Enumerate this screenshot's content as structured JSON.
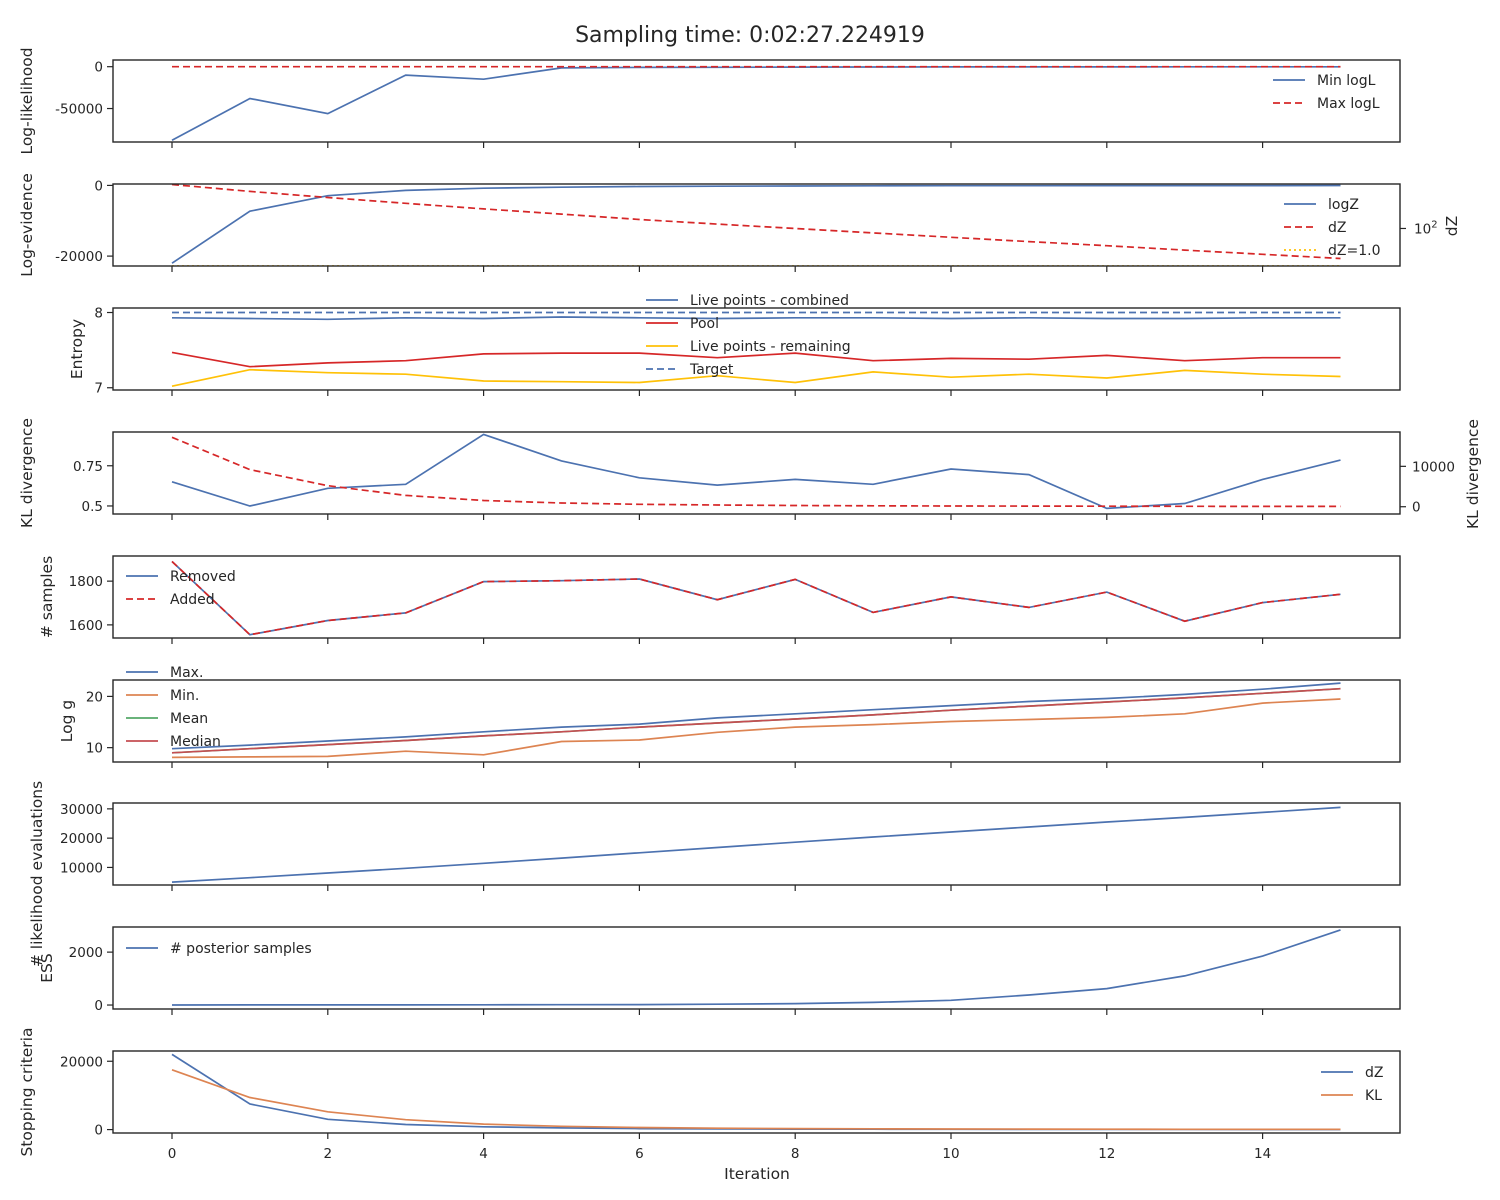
{
  "title": "Sampling time: 0:02:27.224919",
  "xlabel": "Iteration",
  "colors": {
    "blue": "#4c72b0",
    "red": "#d62728",
    "orange": "#dd8452",
    "green": "#55a868",
    "yellow": "#ffc107",
    "crimson": "#c44e52",
    "axis": "#262626"
  },
  "chart_data": [
    {
      "type": "line",
      "ylabel": "Log-likelihood",
      "ylim": [
        -90000,
        8000
      ],
      "yticks": [
        0,
        -50000
      ],
      "legend": "right",
      "x": [
        0,
        1,
        2,
        3,
        4,
        5,
        6,
        7,
        8,
        9,
        10,
        11,
        12,
        13,
        14,
        15
      ],
      "series": [
        {
          "name": "Min logL",
          "color": "#4c72b0",
          "style": "solid",
          "values": [
            -88000,
            -38000,
            -56000,
            -10000,
            -15000,
            -1500,
            -900,
            -700,
            -500,
            -400,
            -300,
            -250,
            -200,
            -180,
            -150,
            -120
          ]
        },
        {
          "name": "Max logL",
          "color": "#d62728",
          "style": "dashed",
          "values": [
            0,
            0,
            0,
            0,
            0,
            0,
            0,
            0,
            0,
            0,
            0,
            0,
            0,
            0,
            0,
            0
          ]
        }
      ]
    },
    {
      "type": "line",
      "ylabel": "Log-evidence",
      "ylim": [
        -22800,
        400
      ],
      "yticks": [
        0,
        -20000
      ],
      "legend": "right",
      "y2label": "dZ",
      "y2scale": "log",
      "y2ticks": [
        {
          "label": "10",
          "sup": "2",
          "value": 100
        }
      ],
      "y2lim_log10": [
        0,
        4.37
      ],
      "x": [
        0,
        1,
        2,
        3,
        4,
        5,
        6,
        7,
        8,
        9,
        10,
        11,
        12,
        13,
        14,
        15
      ],
      "series": [
        {
          "name": "logZ",
          "color": "#4c72b0",
          "style": "solid",
          "axis": "left",
          "values": [
            -22000,
            -7300,
            -2900,
            -1400,
            -800,
            -500,
            -320,
            -220,
            -160,
            -120,
            -90,
            -70,
            -55,
            -45,
            -40,
            -35
          ]
        },
        {
          "name": "dZ",
          "color": "#d62728",
          "style": "dashed",
          "axis": "right",
          "values": [
            22000,
            9500,
            4500,
            2200,
            1100,
            580,
            300,
            170,
            100,
            58,
            34,
            20,
            12,
            7,
            4.2,
            2.5
          ]
        },
        {
          "name": "dZ=1.0",
          "color": "#ffc107",
          "style": "dotted",
          "axis": "right",
          "values": [
            1,
            1,
            1,
            1,
            1,
            1,
            1,
            1,
            1,
            1,
            1,
            1,
            1,
            1,
            1,
            1
          ]
        }
      ]
    },
    {
      "type": "line",
      "ylabel": "Entropy",
      "ylim": [
        6.97,
        8.06
      ],
      "yticks": [
        8,
        7
      ],
      "legend": "top-center",
      "x": [
        0,
        1,
        2,
        3,
        4,
        5,
        6,
        7,
        8,
        9,
        10,
        11,
        12,
        13,
        14,
        15
      ],
      "series": [
        {
          "name": "Live points - combined",
          "color": "#4c72b0",
          "style": "solid",
          "values": [
            7.93,
            7.92,
            7.91,
            7.93,
            7.92,
            7.94,
            7.93,
            7.92,
            7.93,
            7.93,
            7.92,
            7.93,
            7.92,
            7.92,
            7.93,
            7.93
          ]
        },
        {
          "name": "Pool",
          "color": "#d62728",
          "style": "solid",
          "values": [
            7.47,
            7.28,
            7.33,
            7.36,
            7.45,
            7.46,
            7.46,
            7.4,
            7.46,
            7.36,
            7.39,
            7.38,
            7.43,
            7.36,
            7.4,
            7.4
          ]
        },
        {
          "name": "Live points - remaining",
          "color": "#ffc107",
          "style": "solid",
          "values": [
            7.02,
            7.24,
            7.2,
            7.18,
            7.09,
            7.08,
            7.07,
            7.16,
            7.07,
            7.21,
            7.14,
            7.18,
            7.13,
            7.23,
            7.18,
            7.15
          ]
        },
        {
          "name": "Target",
          "color": "#4c72b0",
          "style": "dashed",
          "values": [
            8,
            8,
            8,
            8,
            8,
            8,
            8,
            8,
            8,
            8,
            8,
            8,
            8,
            8,
            8,
            8
          ]
        }
      ]
    },
    {
      "type": "line",
      "ylabel": "KL divergence",
      "ylim": [
        0.45,
        0.96
      ],
      "yticks": [
        0.75,
        0.5
      ],
      "y2label": "KL divergence",
      "y2lim": [
        -1800,
        18500
      ],
      "y2ticks": [
        10000,
        0
      ],
      "x": [
        0,
        1,
        2,
        3,
        4,
        5,
        6,
        7,
        8,
        9,
        10,
        11,
        12,
        13,
        14,
        15
      ],
      "series": [
        {
          "name": "",
          "color": "#4c72b0",
          "style": "solid",
          "axis": "left",
          "values": [
            0.65,
            0.5,
            0.61,
            0.635,
            0.945,
            0.78,
            0.675,
            0.63,
            0.665,
            0.635,
            0.73,
            0.695,
            0.485,
            0.515,
            0.665,
            0.785
          ]
        },
        {
          "name": "",
          "color": "#d62728",
          "style": "dashed",
          "axis": "right",
          "values": [
            17200,
            9200,
            5200,
            2800,
            1550,
            920,
            600,
            420,
            310,
            230,
            180,
            150,
            120,
            100,
            90,
            80
          ]
        }
      ]
    },
    {
      "type": "line",
      "ylabel": "# samples",
      "ylim": [
        1540,
        1915
      ],
      "yticks": [
        1800,
        1600
      ],
      "legend": "top-left",
      "x": [
        0,
        1,
        2,
        3,
        4,
        5,
        6,
        7,
        8,
        9,
        10,
        11,
        12,
        13,
        14,
        15
      ],
      "series": [
        {
          "name": "Removed",
          "color": "#4c72b0",
          "style": "solid",
          "values": [
            1890,
            1555,
            1620,
            1655,
            1798,
            1802,
            1810,
            1715,
            1808,
            1657,
            1728,
            1680,
            1750,
            1617,
            1702,
            1740
          ]
        },
        {
          "name": "Added",
          "color": "#d62728",
          "style": "dashed",
          "values": [
            1890,
            1555,
            1620,
            1655,
            1798,
            1802,
            1810,
            1715,
            1808,
            1657,
            1728,
            1680,
            1750,
            1617,
            1702,
            1740
          ]
        }
      ]
    },
    {
      "type": "line",
      "ylabel": "Log g",
      "ylim": [
        7.2,
        23.2
      ],
      "yticks": [
        20,
        10
      ],
      "legend": "top-left-outside",
      "x": [
        0,
        1,
        2,
        3,
        4,
        5,
        6,
        7,
        8,
        9,
        10,
        11,
        12,
        13,
        14,
        15
      ],
      "series": [
        {
          "name": "Max.",
          "color": "#4c72b0",
          "style": "solid",
          "values": [
            9.8,
            10.5,
            11.3,
            12.1,
            13.1,
            14,
            14.6,
            15.8,
            16.6,
            17.4,
            18.2,
            19.0,
            19.6,
            20.4,
            21.4,
            22.6
          ]
        },
        {
          "name": "Min.",
          "color": "#dd8452",
          "style": "solid",
          "values": [
            8.1,
            8.2,
            8.3,
            9.3,
            8.6,
            11.2,
            11.5,
            13,
            14,
            14.5,
            15.1,
            15.5,
            15.9,
            16.6,
            18.7,
            19.5
          ]
        },
        {
          "name": "Mean",
          "color": "#55a868",
          "style": "solid",
          "values": [
            9,
            9.8,
            10.6,
            11.4,
            12.3,
            13.1,
            14,
            14.8,
            15.6,
            16.4,
            17.3,
            18.1,
            18.9,
            19.7,
            20.6,
            21.5
          ]
        },
        {
          "name": "Median",
          "color": "#c44e52",
          "style": "solid",
          "values": [
            9,
            9.8,
            10.6,
            11.4,
            12.3,
            13.1,
            14,
            14.8,
            15.6,
            16.4,
            17.3,
            18.1,
            18.9,
            19.7,
            20.6,
            21.5
          ]
        }
      ]
    },
    {
      "type": "line",
      "ylabel": "# likelihood evaluations",
      "ylim": [
        4000,
        32000
      ],
      "yticks": [
        30000,
        20000,
        10000
      ],
      "x": [
        0,
        1,
        2,
        3,
        4,
        5,
        6,
        7,
        8,
        9,
        10,
        11,
        12,
        13,
        14,
        15
      ],
      "series": [
        {
          "name": "",
          "color": "#4c72b0",
          "style": "solid",
          "values": [
            5000,
            6500,
            8100,
            9700,
            11400,
            13200,
            15000,
            16800,
            18600,
            20400,
            22100,
            23800,
            25500,
            27100,
            28800,
            30500
          ]
        }
      ]
    },
    {
      "type": "line",
      "ylabel": "ESS",
      "ylim": [
        -150,
        2950
      ],
      "yticks": [
        2000,
        0
      ],
      "legend": "top-left",
      "x": [
        0,
        1,
        2,
        3,
        4,
        5,
        6,
        7,
        8,
        9,
        10,
        11,
        12,
        13,
        14,
        15
      ],
      "series": [
        {
          "name": "# posterior samples",
          "color": "#4c72b0",
          "style": "solid",
          "values": [
            3,
            4,
            5,
            6,
            8,
            12,
            18,
            30,
            55,
            100,
            180,
            380,
            620,
            1100,
            1850,
            2840
          ]
        }
      ]
    },
    {
      "type": "line",
      "ylabel": "Stopping criteria",
      "ylim": [
        -1000,
        23000
      ],
      "yticks": [
        20000,
        0
      ],
      "legend": "right",
      "xticks": [
        0,
        2,
        4,
        6,
        8,
        10,
        12,
        14
      ],
      "x": [
        0,
        1,
        2,
        3,
        4,
        5,
        6,
        7,
        8,
        9,
        10,
        11,
        12,
        13,
        14,
        15
      ],
      "series": [
        {
          "name": "dZ",
          "color": "#4c72b0",
          "style": "solid",
          "values": [
            22000,
            7500,
            3000,
            1500,
            800,
            500,
            300,
            200,
            150,
            100,
            80,
            60,
            50,
            40,
            35,
            30
          ]
        },
        {
          "name": "KL",
          "color": "#dd8452",
          "style": "solid",
          "values": [
            17500,
            9400,
            5200,
            2900,
            1600,
            950,
            600,
            400,
            300,
            220,
            170,
            140,
            110,
            95,
            85,
            75
          ]
        }
      ]
    }
  ]
}
